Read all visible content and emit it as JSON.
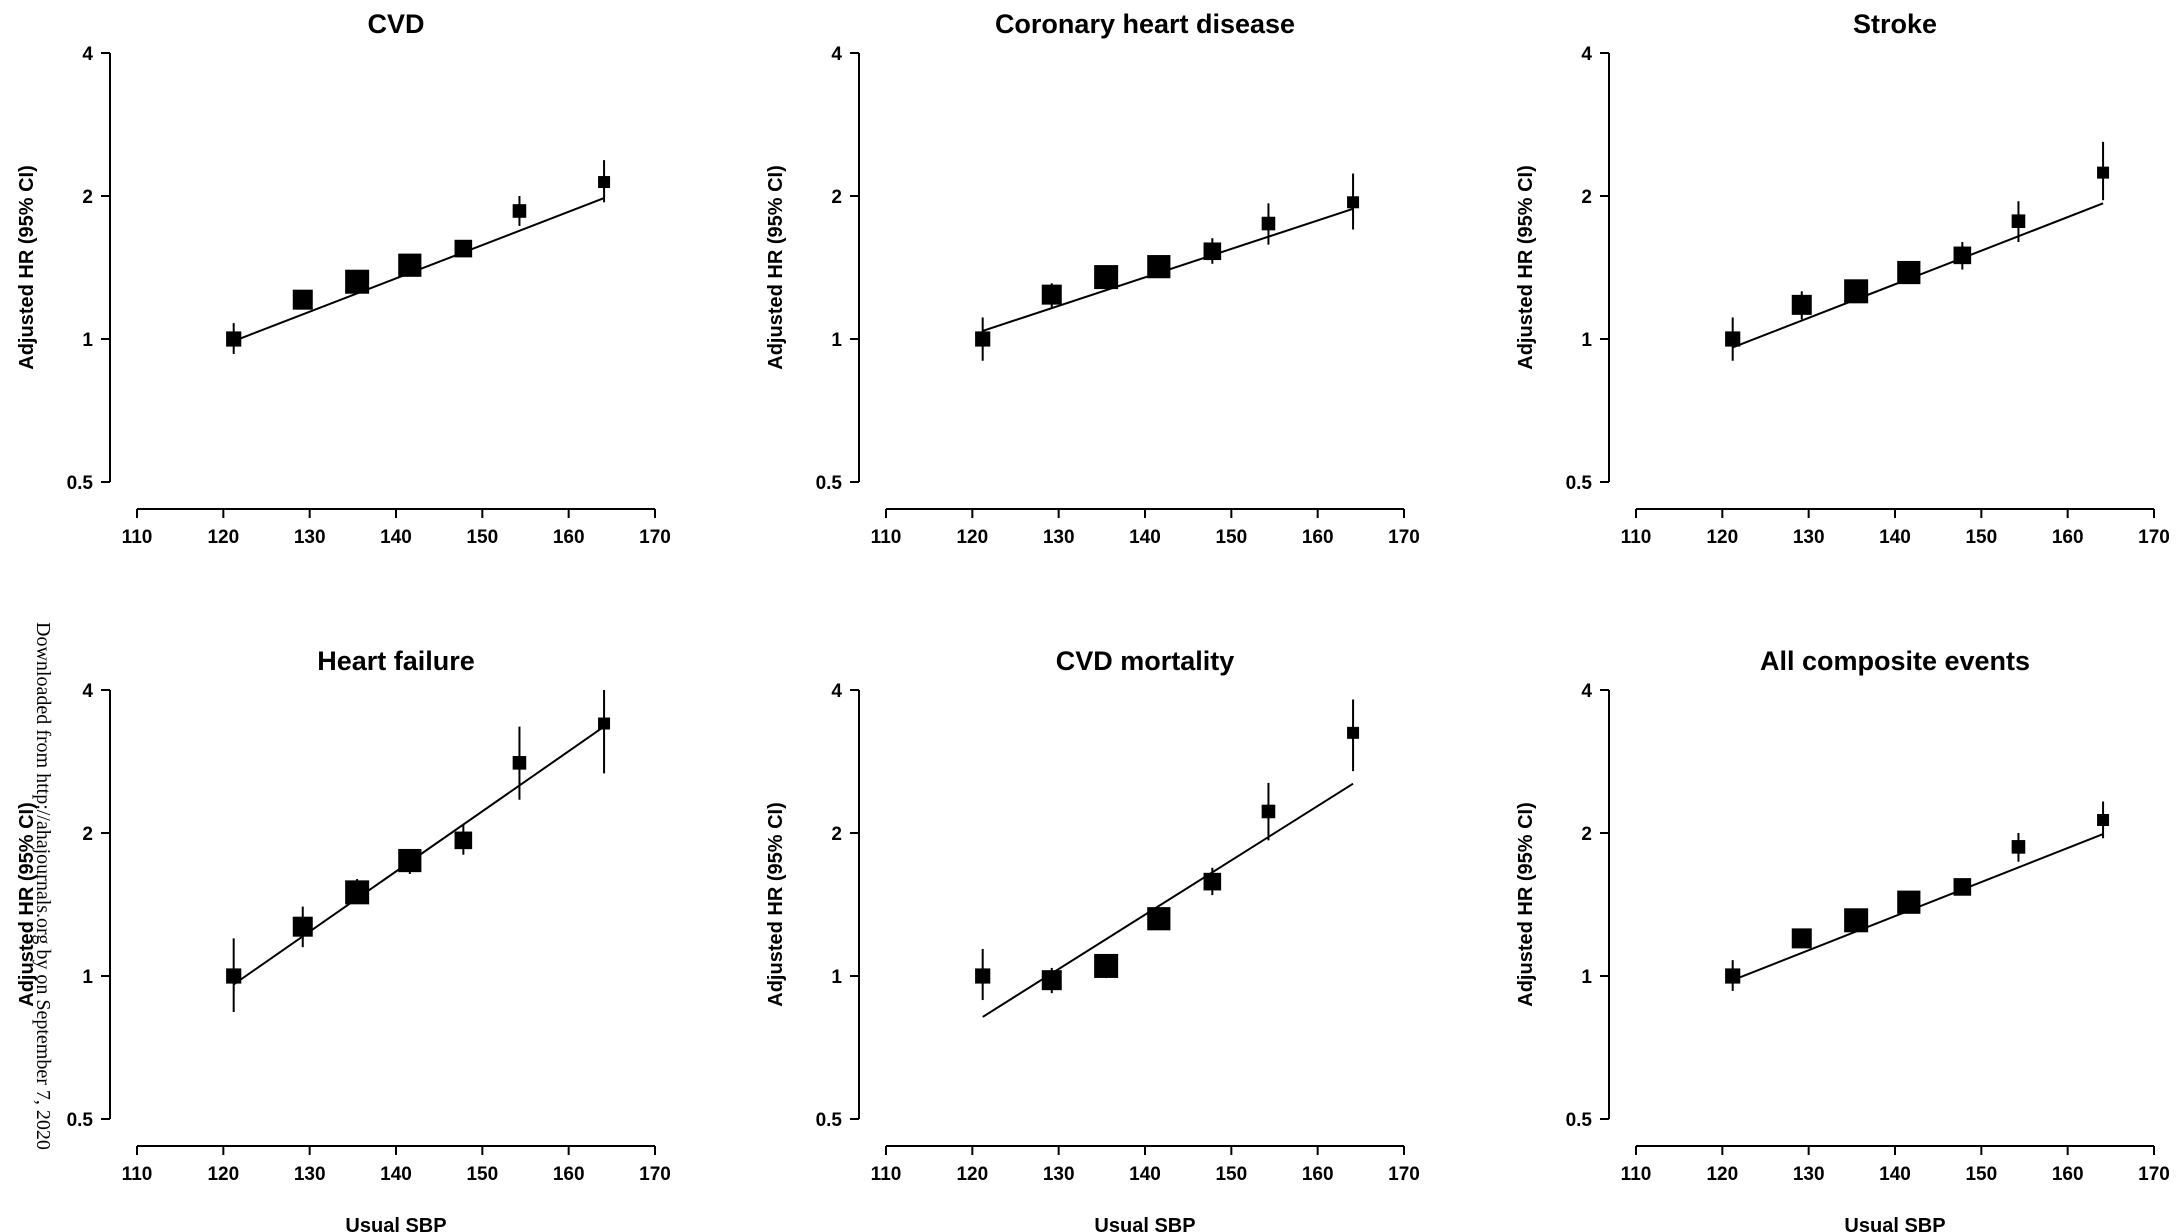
{
  "chart_data": [
    {
      "type": "scatter",
      "title": "CVD",
      "xlabel": "",
      "ylabel": "Adjusted HR (95% CI)",
      "xlim": [
        110,
        170
      ],
      "ylim": [
        0.5,
        4
      ],
      "y_scale": "log",
      "xticks": [
        110,
        120,
        130,
        140,
        150,
        160,
        170
      ],
      "yticks": [
        0.5,
        1,
        2,
        4
      ],
      "ytick_labels": [
        "0.5",
        "1",
        "2",
        "4"
      ],
      "points": [
        {
          "x": 121.2,
          "y": 1.0,
          "lo": 0.93,
          "hi": 1.08,
          "weight": 0.45
        },
        {
          "x": 129.2,
          "y": 1.21,
          "lo": 1.17,
          "hi": 1.25,
          "weight": 0.75
        },
        {
          "x": 135.5,
          "y": 1.32,
          "lo": 1.29,
          "hi": 1.36,
          "weight": 1.0
        },
        {
          "x": 141.6,
          "y": 1.43,
          "lo": 1.39,
          "hi": 1.47,
          "weight": 0.95
        },
        {
          "x": 147.8,
          "y": 1.55,
          "lo": 1.49,
          "hi": 1.61,
          "weight": 0.6
        },
        {
          "x": 154.3,
          "y": 1.86,
          "lo": 1.73,
          "hi": 2.0,
          "weight": 0.35
        },
        {
          "x": 164.1,
          "y": 2.14,
          "lo": 1.94,
          "hi": 2.38,
          "weight": 0.25
        }
      ],
      "fit": {
        "x": [
          121.2,
          164.1
        ],
        "y": [
          0.99,
          1.98
        ]
      }
    },
    {
      "type": "scatter",
      "title": "Coronary heart disease",
      "xlabel": "",
      "ylabel": "Adjusted HR (95% CI)",
      "xlim": [
        110,
        170
      ],
      "ylim": [
        0.5,
        4
      ],
      "y_scale": "log",
      "xticks": [
        110,
        120,
        130,
        140,
        150,
        160,
        170
      ],
      "yticks": [
        0.5,
        1,
        2,
        4
      ],
      "ytick_labels": [
        "0.5",
        "1",
        "2",
        "4"
      ],
      "points": [
        {
          "x": 121.2,
          "y": 1.0,
          "lo": 0.9,
          "hi": 1.11,
          "weight": 0.45
        },
        {
          "x": 129.2,
          "y": 1.24,
          "lo": 1.16,
          "hi": 1.31,
          "weight": 0.75
        },
        {
          "x": 135.5,
          "y": 1.35,
          "lo": 1.3,
          "hi": 1.41,
          "weight": 1.0
        },
        {
          "x": 141.6,
          "y": 1.42,
          "lo": 1.37,
          "hi": 1.47,
          "weight": 0.95
        },
        {
          "x": 147.8,
          "y": 1.53,
          "lo": 1.44,
          "hi": 1.63,
          "weight": 0.6
        },
        {
          "x": 154.3,
          "y": 1.75,
          "lo": 1.58,
          "hi": 1.93,
          "weight": 0.35
        },
        {
          "x": 164.1,
          "y": 1.94,
          "lo": 1.7,
          "hi": 2.23,
          "weight": 0.25
        }
      ],
      "fit": {
        "x": [
          121.2,
          164.1
        ],
        "y": [
          1.04,
          1.88
        ]
      }
    },
    {
      "type": "scatter",
      "title": "Stroke",
      "xlabel": "",
      "ylabel": "Adjusted HR (95% CI)",
      "xlim": [
        110,
        170
      ],
      "ylim": [
        0.5,
        4
      ],
      "y_scale": "log",
      "xticks": [
        110,
        120,
        130,
        140,
        150,
        160,
        170
      ],
      "yticks": [
        0.5,
        1,
        2,
        4
      ],
      "ytick_labels": [
        "0.5",
        "1",
        "2",
        "4"
      ],
      "points": [
        {
          "x": 121.2,
          "y": 1.0,
          "lo": 0.9,
          "hi": 1.11,
          "weight": 0.45
        },
        {
          "x": 129.2,
          "y": 1.18,
          "lo": 1.1,
          "hi": 1.26,
          "weight": 0.75
        },
        {
          "x": 135.5,
          "y": 1.26,
          "lo": 1.2,
          "hi": 1.32,
          "weight": 1.0
        },
        {
          "x": 141.6,
          "y": 1.38,
          "lo": 1.31,
          "hi": 1.45,
          "weight": 0.95
        },
        {
          "x": 147.8,
          "y": 1.5,
          "lo": 1.4,
          "hi": 1.6,
          "weight": 0.6
        },
        {
          "x": 154.3,
          "y": 1.77,
          "lo": 1.6,
          "hi": 1.95,
          "weight": 0.35
        },
        {
          "x": 164.1,
          "y": 2.24,
          "lo": 1.96,
          "hi": 2.6,
          "weight": 0.25
        }
      ],
      "fit": {
        "x": [
          121.2,
          164.1
        ],
        "y": [
          0.96,
          1.93
        ]
      }
    },
    {
      "type": "scatter",
      "title": "Heart failure",
      "xlabel": "Usual SBP",
      "ylabel": "Adjusted HR (95% CI)",
      "xlim": [
        110,
        170
      ],
      "ylim": [
        0.5,
        4
      ],
      "y_scale": "log",
      "xticks": [
        110,
        120,
        130,
        140,
        150,
        160,
        170
      ],
      "yticks": [
        0.5,
        1,
        2,
        4
      ],
      "ytick_labels": [
        "0.5",
        "1",
        "2",
        "4"
      ],
      "points": [
        {
          "x": 121.2,
          "y": 1.0,
          "lo": 0.84,
          "hi": 1.2,
          "weight": 0.45
        },
        {
          "x": 129.2,
          "y": 1.27,
          "lo": 1.15,
          "hi": 1.4,
          "weight": 0.75
        },
        {
          "x": 135.5,
          "y": 1.5,
          "lo": 1.42,
          "hi": 1.6,
          "weight": 1.0
        },
        {
          "x": 141.6,
          "y": 1.75,
          "lo": 1.64,
          "hi": 1.85,
          "weight": 0.95
        },
        {
          "x": 147.8,
          "y": 1.93,
          "lo": 1.8,
          "hi": 2.08,
          "weight": 0.6
        },
        {
          "x": 154.3,
          "y": 2.81,
          "lo": 2.35,
          "hi": 3.35,
          "weight": 0.35
        },
        {
          "x": 164.1,
          "y": 3.4,
          "lo": 2.67,
          "hi": 4.0,
          "weight": 0.25
        }
      ],
      "fit": {
        "x": [
          121.2,
          164.1
        ],
        "y": [
          0.96,
          3.35
        ]
      }
    },
    {
      "type": "scatter",
      "title": "CVD mortality",
      "xlabel": "Usual SBP",
      "ylabel": "Adjusted HR (95% CI)",
      "xlim": [
        110,
        170
      ],
      "ylim": [
        0.5,
        4
      ],
      "y_scale": "log",
      "xticks": [
        110,
        120,
        130,
        140,
        150,
        160,
        170
      ],
      "yticks": [
        0.5,
        1,
        2,
        4
      ],
      "ytick_labels": [
        "0.5",
        "1",
        "2",
        "4"
      ],
      "points": [
        {
          "x": 121.2,
          "y": 1.0,
          "lo": 0.89,
          "hi": 1.14,
          "weight": 0.45
        },
        {
          "x": 129.2,
          "y": 0.98,
          "lo": 0.92,
          "hi": 1.04,
          "weight": 0.75
        },
        {
          "x": 135.5,
          "y": 1.05,
          "lo": 0.99,
          "hi": 1.1,
          "weight": 1.0
        },
        {
          "x": 141.6,
          "y": 1.32,
          "lo": 1.25,
          "hi": 1.39,
          "weight": 0.95
        },
        {
          "x": 147.8,
          "y": 1.58,
          "lo": 1.48,
          "hi": 1.69,
          "weight": 0.6
        },
        {
          "x": 154.3,
          "y": 2.22,
          "lo": 1.93,
          "hi": 2.55,
          "weight": 0.35
        },
        {
          "x": 164.1,
          "y": 3.25,
          "lo": 2.7,
          "hi": 3.82,
          "weight": 0.25
        }
      ],
      "fit": {
        "x": [
          121.2,
          164.1
        ],
        "y": [
          0.82,
          2.54
        ]
      }
    },
    {
      "type": "scatter",
      "title": "All composite events",
      "xlabel": "Usual SBP",
      "ylabel": "Adjusted HR (95% CI)",
      "xlim": [
        110,
        170
      ],
      "ylim": [
        0.5,
        4
      ],
      "y_scale": "log",
      "xticks": [
        110,
        120,
        130,
        140,
        150,
        160,
        170
      ],
      "yticks": [
        0.5,
        1,
        2,
        4
      ],
      "ytick_labels": [
        "0.5",
        "1",
        "2",
        "4"
      ],
      "points": [
        {
          "x": 121.2,
          "y": 1.0,
          "lo": 0.93,
          "hi": 1.08,
          "weight": 0.45
        },
        {
          "x": 129.2,
          "y": 1.2,
          "lo": 1.16,
          "hi": 1.24,
          "weight": 0.75
        },
        {
          "x": 135.5,
          "y": 1.31,
          "lo": 1.28,
          "hi": 1.35,
          "weight": 1.0
        },
        {
          "x": 141.6,
          "y": 1.43,
          "lo": 1.39,
          "hi": 1.47,
          "weight": 0.95
        },
        {
          "x": 147.8,
          "y": 1.54,
          "lo": 1.49,
          "hi": 1.6,
          "weight": 0.6
        },
        {
          "x": 154.3,
          "y": 1.87,
          "lo": 1.74,
          "hi": 2.0,
          "weight": 0.35
        },
        {
          "x": 164.1,
          "y": 2.13,
          "lo": 1.95,
          "hi": 2.33,
          "weight": 0.25
        }
      ],
      "fit": {
        "x": [
          121.2,
          164.1
        ],
        "y": [
          0.98,
          1.99
        ]
      }
    }
  ],
  "watermark": "Downloaded from http://ahajournals.org by on September 7, 2020"
}
